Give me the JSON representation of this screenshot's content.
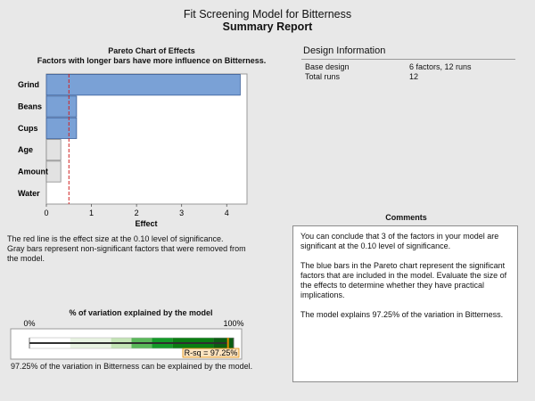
{
  "report": {
    "title": "Fit Screening Model for Bitterness",
    "subtitle": "Summary Report"
  },
  "chart_data": [
    {
      "type": "bar",
      "orientation": "horizontal",
      "title": "Pareto Chart of Effects",
      "subtitle": "Factors with longer bars have more influence on Bitterness.",
      "categories": [
        "Grind",
        "Beans",
        "Cups",
        "Age",
        "Amount",
        "Water"
      ],
      "values": [
        4.3,
        0.67,
        0.67,
        0.32,
        0.32,
        0.0
      ],
      "significant": [
        true,
        true,
        true,
        false,
        false,
        false
      ],
      "xlabel": "Effect",
      "ylabel": "",
      "xlim": [
        0,
        4.45
      ],
      "xticks": [
        0,
        1,
        2,
        3,
        4
      ],
      "reference_line": 0.5,
      "colors": {
        "significant": "#7aa1d6",
        "nonsignificant": "#e2e2e2",
        "reference_line": "#d02020"
      },
      "note": [
        "The red line is the effect size at the 0.10 level of significance.",
        "Gray bars represent non-significant factors that were removed from",
        "the model."
      ]
    },
    {
      "type": "bar",
      "orientation": "horizontal",
      "title": "% of variation explained by the model",
      "value": 97.25,
      "xlim": [
        0,
        100
      ],
      "min_label": "0%",
      "max_label": "100%",
      "value_label": "R-sq = 97.25%",
      "segment_bounds": [
        0,
        20,
        40,
        50,
        60,
        70,
        90,
        100
      ],
      "segment_colors": [
        "#ffffff",
        "#e8f3e2",
        "#c4e4b6",
        "#5ab85a",
        "#139a28",
        "#0a7d12",
        "#0b5e12"
      ],
      "note": "97.25% of the variation in Bitterness can be explained by the model."
    }
  ],
  "design": {
    "title": "Design Information",
    "rows": [
      {
        "label": "Base design",
        "value": "6 factors, 12 runs"
      },
      {
        "label": "Total runs",
        "value": "12"
      }
    ]
  },
  "comments": {
    "title": "Comments",
    "paragraphs": [
      "You can conclude that 3 of the factors in your model are significant at the 0.10 level of significance.",
      "The blue bars in the Pareto chart represent the significant factors that are included in the model. Evaluate the size of the effects to determine whether they have practical implications.",
      "The model explains 97.25% of the variation in Bitterness."
    ]
  }
}
